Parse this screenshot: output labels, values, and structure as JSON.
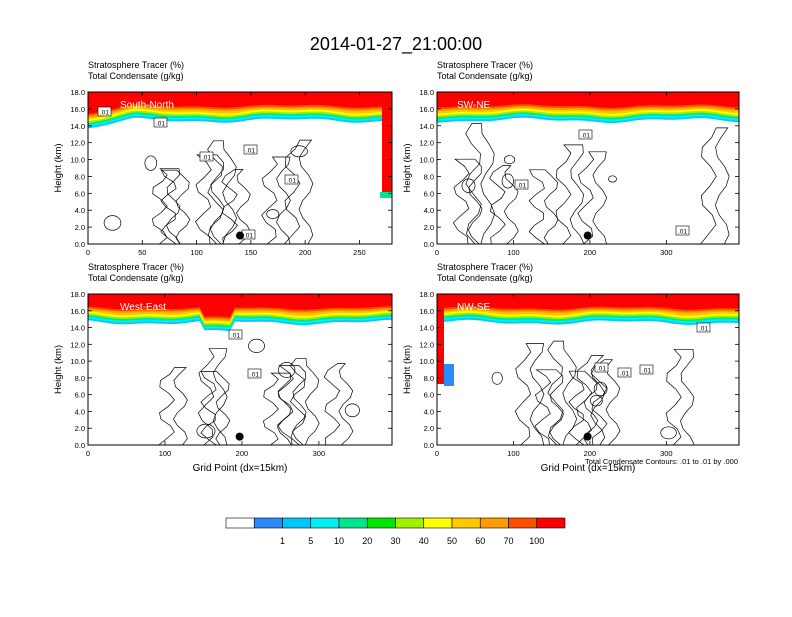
{
  "page": {
    "title": "2014-01-27_21:00:00",
    "contour_note": "Total Condensate Contours: .01 to .01 by .000"
  },
  "colorbar": {
    "colors": [
      "#ffffff",
      "#2b8cf7",
      "#00c8ff",
      "#00f0f0",
      "#00e690",
      "#00e600",
      "#a0f000",
      "#ffff00",
      "#ffc800",
      "#ff9c00",
      "#ff5000",
      "#ff0000"
    ],
    "labels": [
      "1",
      "5",
      "10",
      "20",
      "30",
      "40",
      "50",
      "60",
      "70",
      "100"
    ]
  },
  "chart_data": [
    {
      "type": "contour",
      "title": "South-North",
      "fields": [
        "Stratosphere Tracer   (%)",
        "Total Condensate   (g/kg)"
      ],
      "xlabel": "",
      "ylabel": "Height (km)",
      "xlim": [
        0,
        280
      ],
      "ylim": [
        0,
        18
      ],
      "xticks": [
        "0",
        "50",
        "100",
        "150",
        "200",
        "250"
      ],
      "yticks": [
        "0.0",
        "2.0",
        "4.0",
        "6.0",
        "8.0",
        "10.0",
        "12.0",
        "14.0",
        "16.0",
        "18.0"
      ],
      "contour_labels": [
        ".01",
        ".01",
        ".01",
        ".01",
        ".01",
        ".01"
      ],
      "marker": {
        "x": 140,
        "y": 1.0
      }
    },
    {
      "type": "contour",
      "title": "SW-NE",
      "fields": [
        "Stratosphere Tracer   (%)",
        "Total Condensate   (g/kg)"
      ],
      "xlabel": "",
      "ylabel": "Height (km)",
      "xlim": [
        0,
        395
      ],
      "ylim": [
        0,
        18
      ],
      "xticks": [
        "0",
        "100",
        "200",
        "300"
      ],
      "yticks": [
        "0.0",
        "2.0",
        "4.0",
        "6.0",
        "8.0",
        "10.0",
        "12.0",
        "14.0",
        "16.0",
        "18.0"
      ],
      "contour_labels": [
        ".01",
        ".01",
        ".01"
      ],
      "marker": {
        "x": 197,
        "y": 1.0
      }
    },
    {
      "type": "contour",
      "title": "West-East",
      "fields": [
        "Stratosphere Tracer   (%)",
        "Total Condensate   (g/kg)"
      ],
      "xlabel": "Grid Point (dx=15km)",
      "ylabel": "Height (km)",
      "xlim": [
        0,
        395
      ],
      "ylim": [
        0,
        18
      ],
      "xticks": [
        "0",
        "100",
        "200",
        "300"
      ],
      "yticks": [
        "0.0",
        "2.0",
        "4.0",
        "6.0",
        "8.0",
        "10.0",
        "12.0",
        "14.0",
        "16.0",
        "18.0"
      ],
      "contour_labels": [
        ".01",
        ".01"
      ],
      "marker": {
        "x": 197,
        "y": 1.0
      }
    },
    {
      "type": "contour",
      "title": "NW-SE",
      "fields": [
        "Stratosphere Tracer   (%)",
        "Total Condensate   (g/kg)"
      ],
      "xlabel": "Grid Point (dx=15km)",
      "ylabel": "Height (km)",
      "xlim": [
        0,
        395
      ],
      "ylim": [
        0,
        18
      ],
      "xticks": [
        "0",
        "100",
        "200",
        "300"
      ],
      "yticks": [
        "0.0",
        "2.0",
        "4.0",
        "6.0",
        "8.0",
        "10.0",
        "12.0",
        "14.0",
        "16.0",
        "18.0"
      ],
      "contour_labels": [
        ".01",
        ".01",
        ".01",
        ".01"
      ],
      "marker": {
        "x": 197,
        "y": 1.0
      }
    }
  ]
}
